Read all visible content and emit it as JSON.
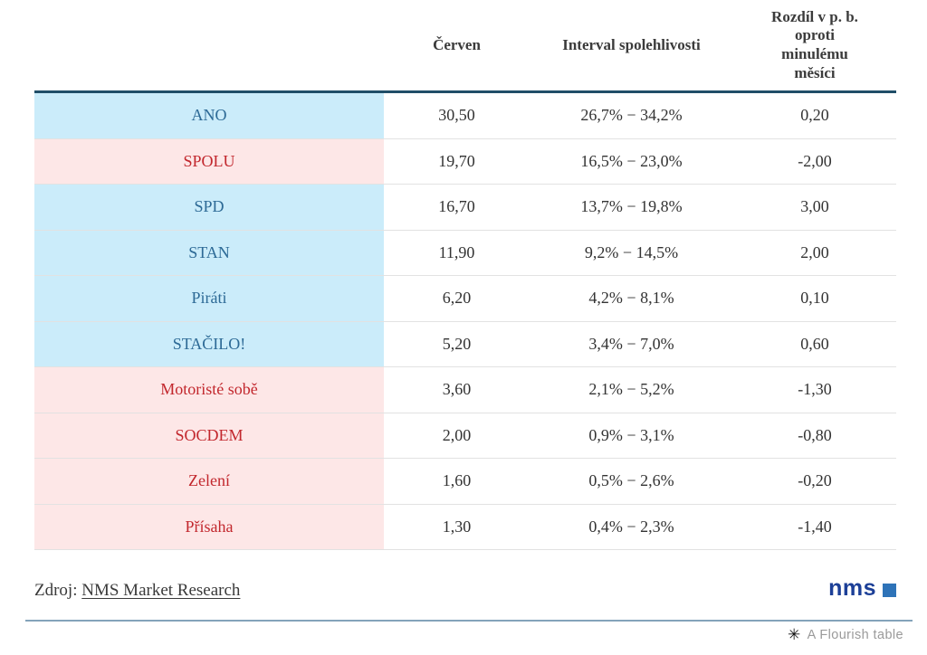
{
  "colors": {
    "page_bg": "#ffffff",
    "top_border": "#204e68",
    "separator": "#e2e2e2",
    "header_text": "#3b3b3b",
    "cell_text": "#333333",
    "blue_bg": "#cbecfa",
    "pink_bg": "#fde7e7",
    "blue_text": "#2d6a96",
    "red_text": "#c2272d",
    "source_text": "#3a3a3a",
    "nms_navy": "#1c3f97",
    "nms_square": "#2e73b8",
    "divider": "#84a3ba",
    "attribution_text": "#9a9a9a"
  },
  "table": {
    "headers": {
      "party": "",
      "month": "Červen",
      "interval": "Interval spolehlivosti",
      "diff": "Rozdíl v p. b. oproti minulému měsíci"
    },
    "rows": [
      {
        "party": "ANO",
        "color": "blue",
        "value": "30,50",
        "interval": "26,7% − 34,2%",
        "diff": "0,20"
      },
      {
        "party": "SPOLU",
        "color": "red",
        "value": "19,70",
        "interval": "16,5% − 23,0%",
        "diff": "-2,00"
      },
      {
        "party": "SPD",
        "color": "blue",
        "value": "16,70",
        "interval": "13,7% − 19,8%",
        "diff": "3,00"
      },
      {
        "party": "STAN",
        "color": "blue",
        "value": "11,90",
        "interval": "9,2% − 14,5%",
        "diff": "2,00"
      },
      {
        "party": "Piráti",
        "color": "blue",
        "value": "6,20",
        "interval": "4,2% − 8,1%",
        "diff": "0,10"
      },
      {
        "party": "STAČILO!",
        "color": "blue",
        "value": "5,20",
        "interval": "3,4% − 7,0%",
        "diff": "0,60"
      },
      {
        "party": "Motoristé sobě",
        "color": "red",
        "value": "3,60",
        "interval": "2,1% − 5,2%",
        "diff": "-1,30"
      },
      {
        "party": "SOCDEM",
        "color": "red",
        "value": "2,00",
        "interval": "0,9% − 3,1%",
        "diff": "-0,80"
      },
      {
        "party": "Zelení",
        "color": "red",
        "value": "1,60",
        "interval": "0,5% − 2,6%",
        "diff": "-0,20"
      },
      {
        "party": "Přísaha",
        "color": "red",
        "value": "1,30",
        "interval": "0,4% − 2,3%",
        "diff": "-1,40"
      }
    ]
  },
  "footer": {
    "source_prefix": "Zdroj:",
    "source_link": "NMS Market Research",
    "logo_text": "nms"
  },
  "attribution": {
    "icon": "✳",
    "label": "A Flourish table"
  },
  "chart_data": {
    "type": "table",
    "title": "",
    "columns": [
      "",
      "Červen",
      "Interval spolehlivosti",
      "Rozdíl v p. b. oproti minulému měsíci"
    ],
    "rows": [
      [
        "ANO",
        30.5,
        "26,7% − 34,2%",
        0.2
      ],
      [
        "SPOLU",
        19.7,
        "16,5% − 23,0%",
        -2.0
      ],
      [
        "SPD",
        16.7,
        "13,7% − 19,8%",
        3.0
      ],
      [
        "STAN",
        11.9,
        "9,2% − 14,5%",
        2.0
      ],
      [
        "Piráti",
        6.2,
        "4,2% − 8,1%",
        0.1
      ],
      [
        "STAČILO!",
        5.2,
        "3,4% − 7,0%",
        0.6
      ],
      [
        "Motoristé sobě",
        3.6,
        "2,1% − 5,2%",
        -1.3
      ],
      [
        "SOCDEM",
        2.0,
        "0,9% − 3,1%",
        -0.8
      ],
      [
        "Zelení",
        1.6,
        "0,5% − 2,6%",
        -0.2
      ],
      [
        "Přísaha",
        1.3,
        "0,4% − 2,3%",
        -1.4
      ]
    ],
    "row_highlight": [
      "blue",
      "red",
      "blue",
      "blue",
      "blue",
      "blue",
      "red",
      "red",
      "red",
      "red"
    ],
    "source": "Zdroj: NMS Market Research"
  }
}
